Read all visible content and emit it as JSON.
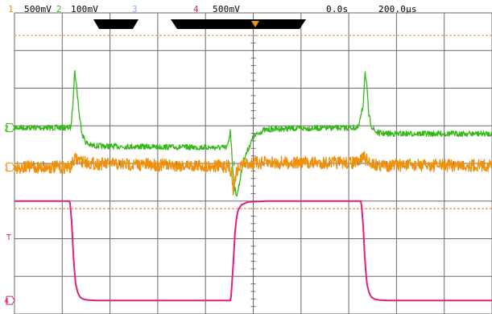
{
  "header": {
    "ch1": {
      "num": "1",
      "scale": "500mV"
    },
    "ch2": {
      "num": "2",
      "scale": "100mV"
    },
    "ch3": {
      "num": "3"
    },
    "ch4": {
      "num": "4",
      "scale": "500mV"
    },
    "trigger_delay": "0.0s",
    "timebase": "200.0µs"
  },
  "colors": {
    "ch1": "#f0900a",
    "ch2": "#34b818",
    "ch3": "#8aa8e6",
    "ch4": "#e0207a",
    "grid": "#6a6a6a",
    "cursor": "#e09050",
    "marker_bar": "#000000"
  },
  "marker_labels": {
    "ch2": "2",
    "ch1": "1",
    "trig": "T",
    "ch4": "4"
  },
  "chart_data": {
    "type": "line",
    "title": "",
    "xlabel": "",
    "ylabel": "",
    "grid": true,
    "x_unit": "div",
    "y_unit": "div",
    "xlim": [
      -5,
      5
    ],
    "ylim": [
      -4,
      4
    ],
    "horizontal_cursors": [
      3.4,
      -1.2
    ],
    "series": [
      {
        "key": "ch2",
        "x": [
          -5.0,
          -4.15,
          -3.82,
          -3.78,
          -3.74,
          -3.7,
          -3.64,
          -3.58,
          -3.5,
          -3.4,
          -3.2,
          -2.6,
          -2.0,
          -1.4,
          -0.55,
          -0.52,
          -0.48,
          -0.44,
          -0.4,
          -0.34,
          -0.2,
          0.0,
          0.2,
          0.5,
          0.9,
          1.5,
          2.2,
          2.3,
          2.34,
          2.38,
          2.42,
          2.48,
          2.56,
          2.66,
          2.8,
          3.2,
          4.0,
          5.0
        ],
        "y": [
          0.95,
          0.95,
          0.95,
          1.55,
          2.48,
          2.05,
          1.25,
          0.78,
          0.55,
          0.48,
          0.46,
          0.45,
          0.44,
          0.43,
          0.42,
          0.55,
          0.9,
          0.1,
          -0.65,
          -0.85,
          0.1,
          0.7,
          0.88,
          0.92,
          0.93,
          0.94,
          0.95,
          1.52,
          2.46,
          2.02,
          1.28,
          0.98,
          0.84,
          0.8,
          0.79,
          0.79,
          0.79,
          0.79
        ]
      },
      {
        "key": "ch1",
        "x": [
          -5.0,
          -3.82,
          -3.74,
          -3.55,
          -3.4,
          -3.0,
          -1.4,
          -0.5,
          -0.45,
          -0.42,
          -0.38,
          -0.33,
          -0.25,
          -0.1,
          0.3,
          1.0,
          2.2,
          2.3,
          2.4,
          2.6,
          3.0,
          4.0,
          5.0
        ],
        "y": [
          -0.1,
          -0.1,
          0.12,
          0.05,
          0.0,
          -0.02,
          -0.05,
          -0.08,
          -0.25,
          -0.75,
          -0.35,
          -0.18,
          -0.05,
          0.0,
          0.02,
          0.02,
          0.02,
          0.2,
          0.05,
          -0.05,
          -0.05,
          -0.05,
          -0.05
        ]
      },
      {
        "key": "ch4",
        "x": [
          -5.0,
          -3.88,
          -3.84,
          -3.8,
          -3.76,
          -3.72,
          -3.67,
          -3.62,
          -3.55,
          -3.45,
          -3.3,
          -3.0,
          -0.55,
          -0.47,
          -0.42,
          -0.38,
          -0.35,
          -0.32,
          -0.25,
          -0.1,
          0.3,
          1.5,
          2.22,
          2.26,
          2.3,
          2.34,
          2.38,
          2.43,
          2.48,
          2.55,
          2.65,
          2.8,
          3.2,
          5.0
        ],
        "y": [
          -1.0,
          -1.0,
          -1.0,
          -1.6,
          -2.6,
          -3.2,
          -3.45,
          -3.56,
          -3.61,
          -3.63,
          -3.64,
          -3.64,
          -3.64,
          -3.64,
          -2.7,
          -1.8,
          -1.45,
          -1.25,
          -1.1,
          -1.02,
          -1.0,
          -1.0,
          -1.0,
          -1.0,
          -1.6,
          -2.6,
          -3.2,
          -3.45,
          -3.56,
          -3.61,
          -3.63,
          -3.64,
          -3.64,
          -3.64
        ]
      }
    ]
  }
}
